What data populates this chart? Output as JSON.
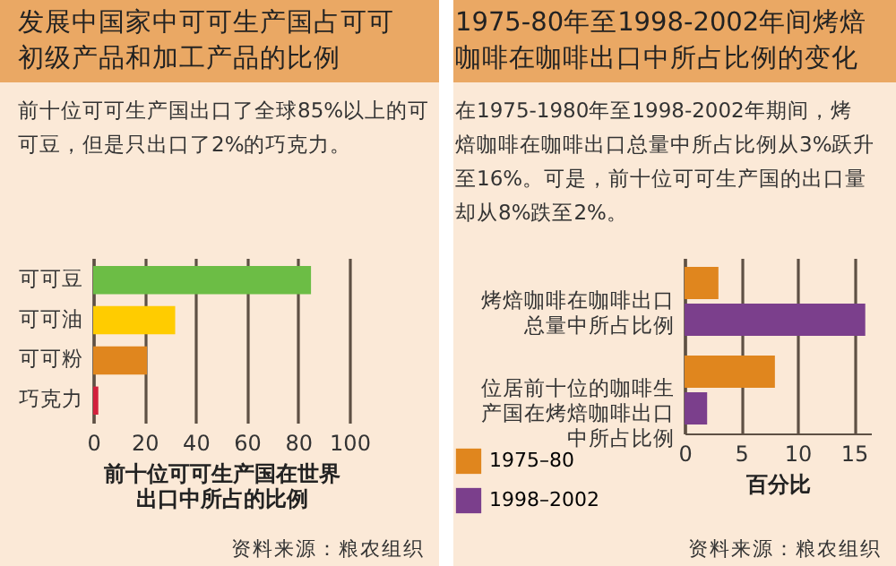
{
  "chart_data": [
    {
      "type": "bar",
      "orientation": "horizontal",
      "title": "发展中国家中可可生产国占可可初级产品和加工产品的比例",
      "subtitle": "前十位可可生产国出口了全球85%以上的可可豆，但是只出口了2%的巧克力。",
      "xlabel": "前十位可可生产国在世界出口中所占的比例",
      "categories": [
        "可可豆",
        "可可油",
        "可可粉",
        "巧克力"
      ],
      "values": [
        85,
        32,
        21,
        2
      ],
      "colors": [
        "#6cbd45",
        "#ffcc00",
        "#e0861e",
        "#d2203c"
      ],
      "xlim": [
        0,
        100
      ],
      "xticks": [
        0,
        20,
        40,
        60,
        80,
        100
      ],
      "grid": "x",
      "annotations": [
        "资料来源：粮农组织"
      ]
    },
    {
      "type": "bar",
      "orientation": "horizontal",
      "title": "1975-80年至1998-2002年间烤焙咖啡在咖啡出口中所占比例的变化",
      "subtitle": "在1975-1980年至1998-2002年期间，烤焙咖啡在咖啡出口总量中所占比例从3%跃升至16%。可是，前十位可可生产国的出口量却从8%跌至2%。",
      "xlabel": "百分比",
      "categories": [
        "烤焙咖啡在咖啡出口总量中所占比例",
        "位居前十位的咖啡生产国在烤焙咖啡出口中所占比例"
      ],
      "series": [
        {
          "name": "1975–80",
          "color": "#e0861e",
          "values": [
            3,
            8
          ]
        },
        {
          "name": "1998–2002",
          "color": "#7b3f8c",
          "values": [
            16,
            2
          ]
        }
      ],
      "xlim": [
        0,
        16.5
      ],
      "xticks": [
        0,
        5,
        10,
        15
      ],
      "grid": "x",
      "legend": "bottom left",
      "annotations": [
        "资料来源：粮农组织"
      ]
    }
  ]
}
